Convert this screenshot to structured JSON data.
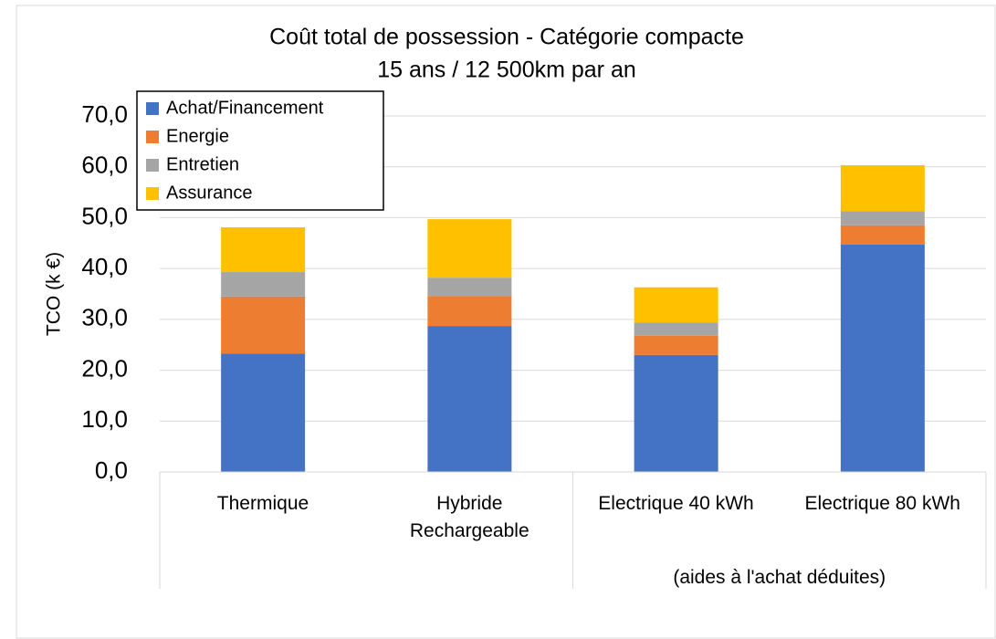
{
  "chart_data": {
    "type": "stacked_bar",
    "title": "Coût total de possession - Catégorie compacte",
    "subtitle": "15 ans / 12 500km par an",
    "y_label": "TCO (k €)",
    "categories": [
      "Thermique",
      "Hybride\nRechargeable",
      "Electrique 40 kWh",
      "Electrique 80 kWh"
    ],
    "category_groups": [
      {
        "label": "(aides à l'achat déduites)",
        "from": 2,
        "to": 3
      }
    ],
    "series": [
      {
        "name": "Achat/Financement",
        "color": "#4472c4",
        "values": [
          23.3,
          28.7,
          23.0,
          44.7
        ]
      },
      {
        "name": "Energie",
        "color": "#ed7d31",
        "values": [
          11.2,
          5.9,
          3.8,
          3.8
        ]
      },
      {
        "name": "Entretien",
        "color": "#a5a5a5",
        "values": [
          4.8,
          3.6,
          2.6,
          2.8
        ]
      },
      {
        "name": "Assurance",
        "color": "#ffc000",
        "values": [
          8.8,
          11.5,
          6.9,
          9.0
        ]
      }
    ],
    "ylim": [
      0,
      70
    ],
    "yticks": [
      {
        "value": 0,
        "label": "0,0"
      },
      {
        "value": 10,
        "label": "10,0"
      },
      {
        "value": 20,
        "label": "20,0"
      },
      {
        "value": 30,
        "label": "30,0"
      },
      {
        "value": 40,
        "label": "40,0"
      },
      {
        "value": 50,
        "label": "50,0"
      },
      {
        "value": 60,
        "label": "60,0"
      },
      {
        "value": 70,
        "label": "70,0"
      }
    ],
    "grid": true,
    "legend": "top-left"
  }
}
